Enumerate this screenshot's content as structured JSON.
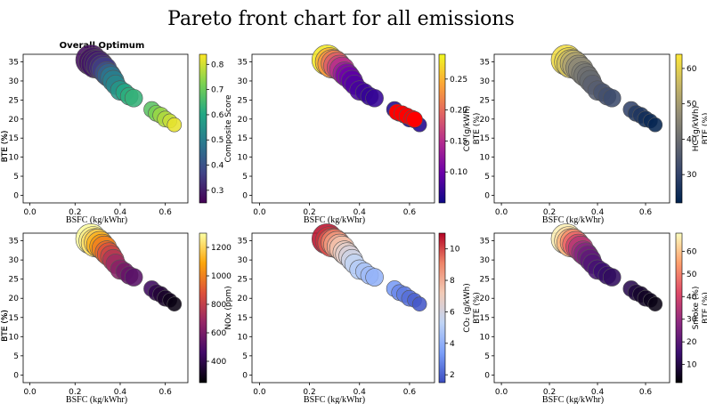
{
  "figure": {
    "title": "Pareto front chart for all emissions",
    "colors": {
      "marker_edge": "#555555",
      "axis": "#000000"
    }
  },
  "chart_data": [
    {
      "type": "scatter",
      "title": "Overall Optimum",
      "xlabel": "BSFC (kg/kWhr)",
      "ylabel": "BTE (%)",
      "xlim": [
        -0.03,
        0.7
      ],
      "ylim": [
        -2,
        37
      ],
      "xticks": [
        "0.0",
        "0.2",
        "0.4",
        "0.6"
      ],
      "yticks": [
        "0",
        "5",
        "10",
        "15",
        "20",
        "25",
        "30",
        "35"
      ],
      "colorbar": {
        "label": "Composite Score",
        "ticks": [
          "0.3",
          "0.4",
          "0.5",
          "0.6",
          "0.7",
          "0.8"
        ],
        "range": [
          0.25,
          0.84
        ],
        "colormap": "viridis"
      },
      "points": [
        {
          "x": 0.27,
          "y": 35.5,
          "c": 0.27
        },
        {
          "x": 0.28,
          "y": 35.0,
          "c": 0.28
        },
        {
          "x": 0.29,
          "y": 34.5,
          "c": 0.29
        },
        {
          "x": 0.3,
          "y": 34.6,
          "c": 0.3
        },
        {
          "x": 0.31,
          "y": 34.0,
          "c": 0.31
        },
        {
          "x": 0.32,
          "y": 33.5,
          "c": 0.33
        },
        {
          "x": 0.33,
          "y": 33.0,
          "c": 0.36
        },
        {
          "x": 0.34,
          "y": 32.0,
          "c": 0.4
        },
        {
          "x": 0.35,
          "y": 31.5,
          "c": 0.44
        },
        {
          "x": 0.36,
          "y": 31.0,
          "c": 0.48
        },
        {
          "x": 0.37,
          "y": 30.0,
          "c": 0.5
        },
        {
          "x": 0.38,
          "y": 29.0,
          "c": 0.52
        },
        {
          "x": 0.4,
          "y": 27.5,
          "c": 0.56
        },
        {
          "x": 0.42,
          "y": 27.0,
          "c": 0.6
        },
        {
          "x": 0.44,
          "y": 26.0,
          "c": 0.62
        },
        {
          "x": 0.46,
          "y": 25.5,
          "c": 0.63
        },
        {
          "x": 0.54,
          "y": 22.5,
          "c": 0.68
        },
        {
          "x": 0.56,
          "y": 21.5,
          "c": 0.72
        },
        {
          "x": 0.58,
          "y": 21.0,
          "c": 0.75
        },
        {
          "x": 0.6,
          "y": 20.0,
          "c": 0.77
        },
        {
          "x": 0.62,
          "y": 19.5,
          "c": 0.79
        },
        {
          "x": 0.64,
          "y": 18.5,
          "c": 0.82
        }
      ]
    },
    {
      "type": "scatter",
      "xlabel": "BSFC (kg/kWhr)",
      "ylabel": "BTE (%)",
      "xlim": [
        -0.03,
        0.7
      ],
      "ylim": [
        -2,
        37
      ],
      "xticks": [
        "0.0",
        "0.2",
        "0.4",
        "0.6"
      ],
      "yticks": [
        "0",
        "5",
        "10",
        "15",
        "20",
        "25",
        "30",
        "35"
      ],
      "colorbar": {
        "label": "CO (g/kWh)",
        "ticks": [
          "0.10",
          "0.15",
          "0.20",
          "0.25"
        ],
        "range": [
          0.05,
          0.29
        ],
        "colormap": "plasma"
      },
      "points": [
        {
          "x": 0.27,
          "y": 35.5,
          "c": 0.28
        },
        {
          "x": 0.28,
          "y": 35.0,
          "c": 0.25
        },
        {
          "x": 0.29,
          "y": 34.5,
          "c": 0.23
        },
        {
          "x": 0.3,
          "y": 34.6,
          "c": 0.21
        },
        {
          "x": 0.31,
          "y": 34.0,
          "c": 0.19
        },
        {
          "x": 0.32,
          "y": 33.5,
          "c": 0.17
        },
        {
          "x": 0.33,
          "y": 33.0,
          "c": 0.15
        },
        {
          "x": 0.34,
          "y": 32.0,
          "c": 0.13
        },
        {
          "x": 0.35,
          "y": 31.5,
          "c": 0.11
        },
        {
          "x": 0.36,
          "y": 31.0,
          "c": 0.1
        },
        {
          "x": 0.37,
          "y": 30.0,
          "c": 0.09
        },
        {
          "x": 0.38,
          "y": 29.0,
          "c": 0.085
        },
        {
          "x": 0.4,
          "y": 27.5,
          "c": 0.08
        },
        {
          "x": 0.42,
          "y": 27.0,
          "c": 0.075
        },
        {
          "x": 0.44,
          "y": 26.0,
          "c": 0.07
        },
        {
          "x": 0.46,
          "y": 25.5,
          "c": 0.07
        },
        {
          "x": 0.54,
          "y": 22.5,
          "c": 0.06
        },
        {
          "x": 0.56,
          "y": 21.5,
          "c": 0.055
        },
        {
          "x": 0.58,
          "y": 21.0,
          "c": 0.055
        },
        {
          "x": 0.6,
          "y": 20.0,
          "c": 0.055
        },
        {
          "x": 0.62,
          "y": 19.5,
          "c": 0.06
        },
        {
          "x": 0.64,
          "y": 18.5,
          "c": 0.06
        }
      ],
      "highlighted": {
        "color": "#ff0000",
        "points": [
          {
            "x": 0.55,
            "y": 21.8
          },
          {
            "x": 0.57,
            "y": 21.4
          },
          {
            "x": 0.59,
            "y": 20.8
          },
          {
            "x": 0.61,
            "y": 20.2
          },
          {
            "x": 0.62,
            "y": 19.9
          }
        ]
      }
    },
    {
      "type": "scatter",
      "xlabel": "BSFC (kg/kWhr)",
      "ylabel": "BTE (%)",
      "xlim": [
        -0.03,
        0.7
      ],
      "ylim": [
        -2,
        37
      ],
      "xticks": [
        "0.0",
        "0.2",
        "0.4",
        "0.6"
      ],
      "yticks": [
        "0",
        "5",
        "10",
        "15",
        "20",
        "25",
        "30",
        "35"
      ],
      "colorbar": {
        "label": "HC (g/kWh)",
        "ticks": [
          "30",
          "40",
          "50",
          "60"
        ],
        "range": [
          22,
          64
        ],
        "colormap": "cividis"
      },
      "points": [
        {
          "x": 0.27,
          "y": 35.5,
          "c": 62
        },
        {
          "x": 0.28,
          "y": 35.0,
          "c": 60
        },
        {
          "x": 0.29,
          "y": 34.5,
          "c": 57
        },
        {
          "x": 0.3,
          "y": 34.6,
          "c": 54
        },
        {
          "x": 0.31,
          "y": 34.0,
          "c": 51
        },
        {
          "x": 0.32,
          "y": 33.5,
          "c": 48
        },
        {
          "x": 0.33,
          "y": 33.0,
          "c": 46
        },
        {
          "x": 0.34,
          "y": 32.0,
          "c": 44
        },
        {
          "x": 0.35,
          "y": 31.5,
          "c": 42
        },
        {
          "x": 0.36,
          "y": 31.0,
          "c": 40
        },
        {
          "x": 0.37,
          "y": 30.0,
          "c": 39
        },
        {
          "x": 0.38,
          "y": 29.0,
          "c": 37
        },
        {
          "x": 0.4,
          "y": 27.5,
          "c": 36
        },
        {
          "x": 0.42,
          "y": 27.0,
          "c": 34
        },
        {
          "x": 0.44,
          "y": 26.0,
          "c": 33
        },
        {
          "x": 0.46,
          "y": 25.5,
          "c": 32
        },
        {
          "x": 0.54,
          "y": 22.5,
          "c": 30
        },
        {
          "x": 0.56,
          "y": 21.5,
          "c": 28
        },
        {
          "x": 0.58,
          "y": 21.0,
          "c": 27
        },
        {
          "x": 0.6,
          "y": 20.0,
          "c": 25
        },
        {
          "x": 0.62,
          "y": 19.5,
          "c": 24
        },
        {
          "x": 0.64,
          "y": 18.5,
          "c": 23
        }
      ]
    },
    {
      "type": "scatter",
      "xlabel": "BSFC (kg/kWhr)",
      "ylabel": "BTE (%)",
      "xlim": [
        -0.03,
        0.7
      ],
      "ylim": [
        -2,
        37
      ],
      "xticks": [
        "0.0",
        "0.2",
        "0.4",
        "0.6"
      ],
      "yticks": [
        "0",
        "5",
        "10",
        "15",
        "20",
        "25",
        "30",
        "35"
      ],
      "colorbar": {
        "label": "NOx (ppm)",
        "ticks": [
          "400",
          "600",
          "800",
          "1000",
          "1200"
        ],
        "range": [
          250,
          1300
        ],
        "colormap": "inferno"
      },
      "points": [
        {
          "x": 0.27,
          "y": 35.5,
          "c": 1290
        },
        {
          "x": 0.28,
          "y": 35.0,
          "c": 1260
        },
        {
          "x": 0.29,
          "y": 34.5,
          "c": 1220
        },
        {
          "x": 0.3,
          "y": 34.6,
          "c": 1180
        },
        {
          "x": 0.31,
          "y": 34.0,
          "c": 1120
        },
        {
          "x": 0.32,
          "y": 33.5,
          "c": 1060
        },
        {
          "x": 0.33,
          "y": 33.0,
          "c": 1000
        },
        {
          "x": 0.34,
          "y": 32.0,
          "c": 940
        },
        {
          "x": 0.35,
          "y": 31.5,
          "c": 880
        },
        {
          "x": 0.36,
          "y": 31.0,
          "c": 820
        },
        {
          "x": 0.37,
          "y": 30.0,
          "c": 760
        },
        {
          "x": 0.38,
          "y": 29.0,
          "c": 700
        },
        {
          "x": 0.4,
          "y": 27.5,
          "c": 640
        },
        {
          "x": 0.42,
          "y": 27.0,
          "c": 590
        },
        {
          "x": 0.44,
          "y": 26.0,
          "c": 550
        },
        {
          "x": 0.46,
          "y": 25.5,
          "c": 520
        },
        {
          "x": 0.54,
          "y": 22.5,
          "c": 440
        },
        {
          "x": 0.56,
          "y": 21.5,
          "c": 400
        },
        {
          "x": 0.58,
          "y": 21.0,
          "c": 360
        },
        {
          "x": 0.6,
          "y": 20.0,
          "c": 330
        },
        {
          "x": 0.62,
          "y": 19.5,
          "c": 300
        },
        {
          "x": 0.64,
          "y": 18.5,
          "c": 280
        }
      ]
    },
    {
      "type": "scatter",
      "xlabel": "BSFC (kg/kWhr)",
      "ylabel": "BTE (%)",
      "xlim": [
        -0.03,
        0.7
      ],
      "ylim": [
        -2,
        37
      ],
      "xticks": [
        "0.0",
        "0.2",
        "0.4",
        "0.6"
      ],
      "yticks": [
        "0",
        "5",
        "10",
        "15",
        "20",
        "25",
        "30",
        "35"
      ],
      "colorbar": {
        "label": "CO₂ (g/kWh)",
        "ticks": [
          "2",
          "4",
          "6",
          "8",
          "10"
        ],
        "range": [
          1.5,
          11
        ],
        "colormap": "coolwarm"
      },
      "points": [
        {
          "x": 0.27,
          "y": 35.5,
          "c": 10.8
        },
        {
          "x": 0.28,
          "y": 35.0,
          "c": 10.3
        },
        {
          "x": 0.29,
          "y": 34.5,
          "c": 9.8
        },
        {
          "x": 0.3,
          "y": 34.6,
          "c": 9.2
        },
        {
          "x": 0.31,
          "y": 34.0,
          "c": 8.6
        },
        {
          "x": 0.32,
          "y": 33.5,
          "c": 8.0
        },
        {
          "x": 0.33,
          "y": 33.0,
          "c": 7.5
        },
        {
          "x": 0.34,
          "y": 32.0,
          "c": 7.0
        },
        {
          "x": 0.35,
          "y": 31.5,
          "c": 6.6
        },
        {
          "x": 0.36,
          "y": 31.0,
          "c": 6.2
        },
        {
          "x": 0.37,
          "y": 30.0,
          "c": 5.8
        },
        {
          "x": 0.38,
          "y": 29.0,
          "c": 5.4
        },
        {
          "x": 0.4,
          "y": 27.5,
          "c": 5.0
        },
        {
          "x": 0.42,
          "y": 27.0,
          "c": 4.7
        },
        {
          "x": 0.44,
          "y": 26.0,
          "c": 4.4
        },
        {
          "x": 0.46,
          "y": 25.5,
          "c": 4.1
        },
        {
          "x": 0.54,
          "y": 22.5,
          "c": 3.3
        },
        {
          "x": 0.56,
          "y": 21.5,
          "c": 2.9
        },
        {
          "x": 0.58,
          "y": 21.0,
          "c": 2.6
        },
        {
          "x": 0.6,
          "y": 20.0,
          "c": 2.3
        },
        {
          "x": 0.62,
          "y": 19.5,
          "c": 2.0
        },
        {
          "x": 0.64,
          "y": 18.5,
          "c": 1.8
        }
      ]
    },
    {
      "type": "scatter",
      "xlabel": "BSFC (kg/kWhr)",
      "ylabel": "BTE (%)",
      "xlim": [
        -0.03,
        0.7
      ],
      "ylim": [
        -2,
        37
      ],
      "xticks": [
        "0.0",
        "0.2",
        "0.4",
        "0.6"
      ],
      "yticks": [
        "0",
        "5",
        "10",
        "15",
        "20",
        "25",
        "30",
        "35"
      ],
      "colorbar": {
        "label": "Smoke (%)",
        "ticks": [
          "10",
          "20",
          "30",
          "40",
          "50",
          "60"
        ],
        "range": [
          2,
          68
        ],
        "colormap": "magma"
      },
      "points": [
        {
          "x": 0.27,
          "y": 35.5,
          "c": 66
        },
        {
          "x": 0.28,
          "y": 35.0,
          "c": 63
        },
        {
          "x": 0.29,
          "y": 34.5,
          "c": 58
        },
        {
          "x": 0.3,
          "y": 34.6,
          "c": 52
        },
        {
          "x": 0.31,
          "y": 34.0,
          "c": 46
        },
        {
          "x": 0.32,
          "y": 33.5,
          "c": 40
        },
        {
          "x": 0.33,
          "y": 33.0,
          "c": 35
        },
        {
          "x": 0.34,
          "y": 32.0,
          "c": 31
        },
        {
          "x": 0.35,
          "y": 31.5,
          "c": 27
        },
        {
          "x": 0.36,
          "y": 31.0,
          "c": 24
        },
        {
          "x": 0.37,
          "y": 30.0,
          "c": 21
        },
        {
          "x": 0.38,
          "y": 29.0,
          "c": 19
        },
        {
          "x": 0.4,
          "y": 27.5,
          "c": 17
        },
        {
          "x": 0.42,
          "y": 27.0,
          "c": 15
        },
        {
          "x": 0.44,
          "y": 26.0,
          "c": 14
        },
        {
          "x": 0.46,
          "y": 25.5,
          "c": 13
        },
        {
          "x": 0.54,
          "y": 22.5,
          "c": 11
        },
        {
          "x": 0.56,
          "y": 21.5,
          "c": 9
        },
        {
          "x": 0.58,
          "y": 21.0,
          "c": 7
        },
        {
          "x": 0.6,
          "y": 20.0,
          "c": 6
        },
        {
          "x": 0.62,
          "y": 19.5,
          "c": 5
        },
        {
          "x": 0.64,
          "y": 18.5,
          "c": 4
        }
      ]
    }
  ]
}
